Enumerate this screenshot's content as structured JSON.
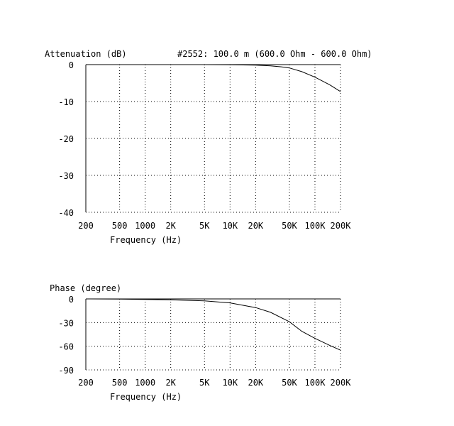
{
  "chart_data": [
    {
      "type": "line",
      "title": "#2552: 100.0 m (600.0 Ohm - 600.0 Ohm)",
      "ylabel": "Attenuation (dB)",
      "xlabel": "Frequency (Hz)",
      "x_scale": "log",
      "xlim": [
        200,
        200000
      ],
      "ylim": [
        -40,
        0
      ],
      "grid": true,
      "x_ticks": [
        200,
        500,
        1000,
        2000,
        5000,
        10000,
        20000,
        50000,
        100000,
        200000
      ],
      "x_tick_labels": [
        "200",
        "500",
        "1000",
        "2K",
        "5K",
        "10K",
        "20K",
        "50K",
        "100K",
        "200K"
      ],
      "y_ticks": [
        0,
        -10,
        -20,
        -30,
        -40
      ],
      "y_tick_labels": [
        "0",
        "-10",
        "-20",
        "-30",
        "-40"
      ],
      "series": [
        {
          "x": [
            200,
            500,
            1000,
            2000,
            5000,
            10000,
            20000,
            30000,
            40000,
            50000,
            70000,
            100000,
            150000,
            200000
          ],
          "y": [
            0,
            0,
            0,
            0,
            0,
            -0.03,
            -0.15,
            -0.35,
            -0.6,
            -0.9,
            -1.9,
            -3.4,
            -5.5,
            -7.3
          ]
        }
      ]
    },
    {
      "type": "line",
      "title": "",
      "ylabel": "Phase (degree)",
      "xlabel": "Frequency (Hz)",
      "x_scale": "log",
      "xlim": [
        200,
        200000
      ],
      "ylim": [
        -90,
        0
      ],
      "grid": true,
      "x_ticks": [
        200,
        500,
        1000,
        2000,
        5000,
        10000,
        20000,
        50000,
        100000,
        200000
      ],
      "x_tick_labels": [
        "200",
        "500",
        "1000",
        "2K",
        "5K",
        "10K",
        "20K",
        "50K",
        "100K",
        "200K"
      ],
      "y_ticks": [
        0,
        -30,
        -60,
        -90
      ],
      "y_tick_labels": [
        "0",
        "-30",
        "-60",
        "-90"
      ],
      "series": [
        {
          "x": [
            200,
            500,
            1000,
            2000,
            5000,
            10000,
            20000,
            30000,
            50000,
            70000,
            100000,
            150000,
            200000
          ],
          "y": [
            0,
            -0.3,
            -0.7,
            -1.2,
            -2.5,
            -5,
            -11,
            -17,
            -29,
            -41,
            -50,
            -59,
            -65
          ]
        }
      ]
    }
  ]
}
